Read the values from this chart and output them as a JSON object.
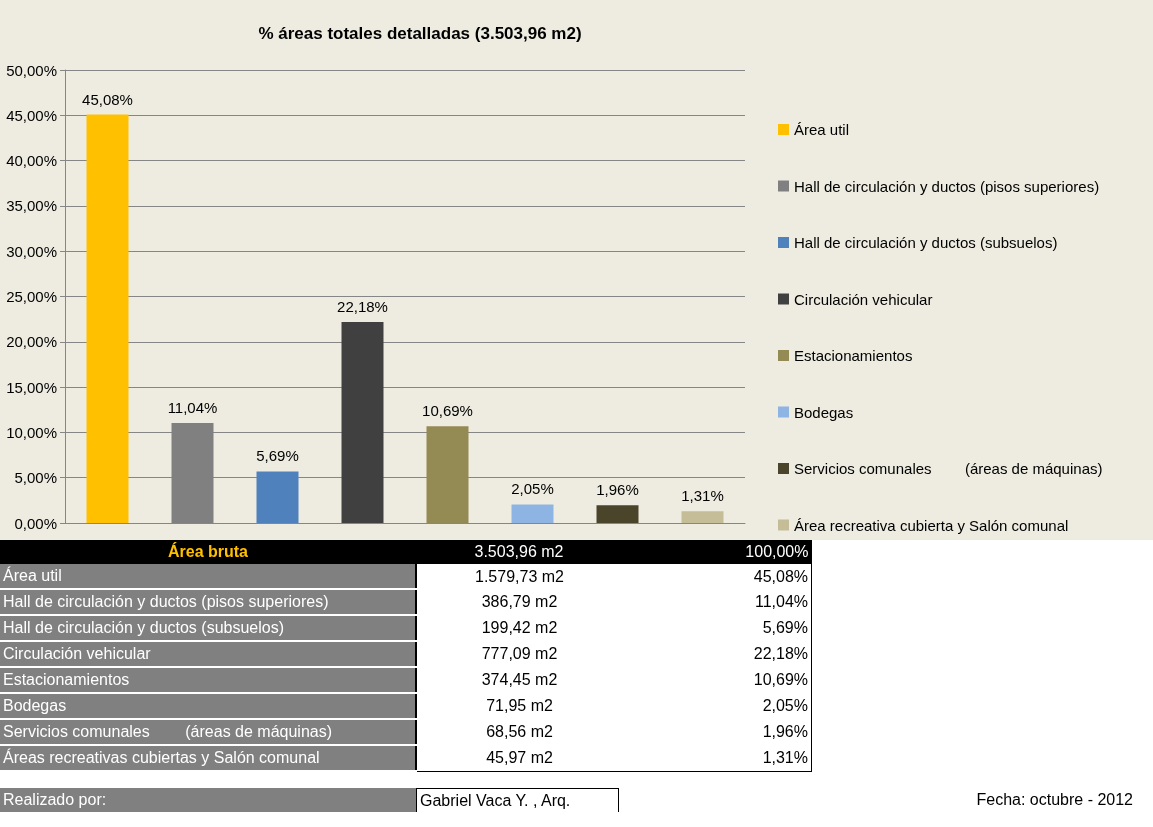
{
  "chart_data": {
    "type": "bar",
    "title": "% áreas totales detalladas (3.503,96 m2)",
    "categories": [
      null,
      null,
      null,
      null,
      null,
      null,
      null,
      null
    ],
    "series": [
      {
        "name": "Área util",
        "color": "#ffc000",
        "values": [
          45.08,
          null,
          null,
          null,
          null,
          null,
          null,
          null
        ],
        "value_labels": [
          "45,08%",
          null,
          null,
          null,
          null,
          null,
          null,
          null
        ]
      },
      {
        "name": "Hall de circulación y ductos (pisos superiores)",
        "color": "#808080",
        "values": [
          null,
          11.04,
          null,
          null,
          null,
          null,
          null,
          null
        ],
        "value_labels": [
          null,
          "11,04%",
          null,
          null,
          null,
          null,
          null,
          null
        ]
      },
      {
        "name": "Hall de circulación y ductos (subsuelos)",
        "color": "#4f81bd",
        "values": [
          null,
          null,
          5.69,
          null,
          null,
          null,
          null,
          null
        ],
        "value_labels": [
          null,
          null,
          "5,69%",
          null,
          null,
          null,
          null,
          null
        ]
      },
      {
        "name": "Circulación vehicular",
        "color": "#404040",
        "values": [
          null,
          null,
          null,
          22.18,
          null,
          null,
          null,
          null
        ],
        "value_labels": [
          null,
          null,
          null,
          "22,18%",
          null,
          null,
          null,
          null
        ]
      },
      {
        "name": "Estacionamientos",
        "color": "#948a54",
        "values": [
          null,
          null,
          null,
          null,
          10.69,
          null,
          null,
          null
        ],
        "value_labels": [
          null,
          null,
          null,
          null,
          "10,69%",
          null,
          null,
          null
        ]
      },
      {
        "name": "Bodegas",
        "color": "#8db4e2",
        "values": [
          null,
          null,
          null,
          null,
          null,
          2.05,
          null,
          null
        ],
        "value_labels": [
          null,
          null,
          null,
          null,
          null,
          "2,05%",
          null,
          null
        ]
      },
      {
        "name": "Servicios comunales        (áreas de máquinas)",
        "color": "#4a452a",
        "values": [
          null,
          null,
          null,
          null,
          null,
          null,
          1.96,
          null
        ],
        "value_labels": [
          null,
          null,
          null,
          null,
          null,
          null,
          "1,96%",
          null
        ]
      },
      {
        "name": "Área recreativa cubierta y Salón comunal",
        "color": "#c4bd97",
        "values": [
          null,
          null,
          null,
          null,
          null,
          null,
          null,
          1.31
        ],
        "value_labels": [
          null,
          null,
          null,
          null,
          null,
          null,
          null,
          "1,31%"
        ]
      }
    ],
    "ylim": [
      0,
      50
    ],
    "yticks": [
      {
        "value": 0,
        "label": "0,00%"
      },
      {
        "value": 5,
        "label": "5,00%"
      },
      {
        "value": 10,
        "label": "10,00%"
      },
      {
        "value": 15,
        "label": "15,00%"
      },
      {
        "value": 20,
        "label": "20,00%"
      },
      {
        "value": 25,
        "label": "25,00%"
      },
      {
        "value": 30,
        "label": "30,00%"
      },
      {
        "value": 35,
        "label": "35,00%"
      },
      {
        "value": 40,
        "label": "40,00%"
      },
      {
        "value": 45,
        "label": "45,00%"
      },
      {
        "value": 50,
        "label": "50,00%"
      }
    ],
    "grid": "y",
    "legend": "right",
    "tick_labels": "y",
    "annotations": [
      "Área bruta",
      "3.503,96 m2",
      "100,00%",
      "Área util",
      "1.579,73 m2",
      "Hall de circulación y ductos (pisos superiores)",
      "386,79 m2",
      "Hall de circulación y ductos (subsuelos)",
      "199,42 m2",
      "Circulación vehicular",
      "777,09 m2",
      "Estacionamientos",
      "374,45 m2",
      "Bodegas",
      "71,95 m2",
      "Servicios comunales        (áreas de máquinas)",
      "68,56 m2",
      "Áreas recreativas cubiertas y Salón comunal",
      "45,97 m2",
      "Realizado por:",
      "Gabriel Vaca Y. , Arq.",
      "Fecha: octubre - 2012"
    ]
  }
}
